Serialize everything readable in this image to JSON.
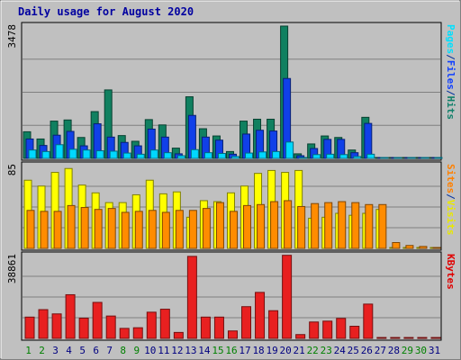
{
  "chart_data": {
    "type": "bar",
    "title": "Daily usage for August 2020",
    "days": [
      "1",
      "2",
      "3",
      "4",
      "5",
      "6",
      "7",
      "8",
      "9",
      "10",
      "11",
      "12",
      "13",
      "14",
      "15",
      "16",
      "17",
      "18",
      "19",
      "20",
      "21",
      "22",
      "23",
      "24",
      "25",
      "26",
      "27",
      "28",
      "29",
      "30",
      "31"
    ],
    "weekend_days": [
      1,
      2,
      8,
      9,
      15,
      16,
      22,
      23,
      29,
      30
    ],
    "panels": [
      {
        "id": "hits-files-pages",
        "max_label": "3478",
        "ymax": 3478,
        "side_label": [
          "Pages",
          "/",
          "Files",
          "/",
          "Hits"
        ],
        "side_label_colors": [
          "#00e0ff",
          "#0030a0",
          "#1040ff",
          "#0030a0",
          "#10806a"
        ],
        "series": [
          {
            "name": "Hits",
            "color": "#108060",
            "values": [
              700,
              510,
              980,
              1010,
              550,
              1230,
              1800,
              600,
              450,
              1020,
              880,
              270,
              1620,
              780,
              590,
              180,
              980,
              1030,
              1030,
              3478,
              120,
              380,
              590,
              550,
              220,
              1080,
              0,
              0,
              0,
              0,
              0
            ]
          },
          {
            "name": "Files",
            "color": "#1040e8",
            "values": [
              510,
              340,
              610,
              710,
              330,
              910,
              560,
              420,
              330,
              770,
              560,
              120,
              1130,
              560,
              480,
              110,
              640,
              740,
              720,
              2100,
              70,
              260,
              500,
              500,
              150,
              920,
              0,
              0,
              0,
              0,
              0
            ]
          },
          {
            "name": "Pages",
            "color": "#00d8ff",
            "values": [
              220,
              180,
              360,
              240,
              220,
              200,
              190,
              140,
              110,
              220,
              150,
              70,
              230,
              150,
              130,
              50,
              140,
              170,
              180,
              430,
              20,
              100,
              110,
              100,
              50,
              110,
              0,
              0,
              0,
              0,
              0
            ]
          }
        ]
      },
      {
        "id": "visits-sites",
        "max_label": "85",
        "ymax": 85,
        "side_label": [
          "Sites",
          "/",
          "Visits"
        ],
        "side_label_colors": [
          "#ff8000",
          "#0030a0",
          "#e8e800"
        ],
        "series": [
          {
            "name": "Visits",
            "color": "#ffff00",
            "values": [
              70,
              64,
              78,
              82,
              65,
              57,
              47,
              47,
              55,
              70,
              56,
              58,
              32,
              49,
              48,
              57,
              64,
              77,
              80,
              78,
              80,
              31,
              32,
              36,
              34,
              36,
              40,
              0,
              0,
              0,
              0
            ]
          },
          {
            "name": "Sites",
            "color": "#ff8c00",
            "values": [
              39,
              38,
              38,
              44,
              42,
              40,
              41,
              37,
              38,
              39,
              37,
              39,
              39,
              41,
              47,
              38,
              44,
              45,
              48,
              49,
              43,
              46,
              47,
              48,
              47,
              45,
              45,
              6,
              3,
              2,
              0
            ]
          }
        ]
      },
      {
        "id": "kbytes",
        "max_label": "38861",
        "ymax": 38861,
        "side_label": [
          "KBytes"
        ],
        "side_label_colors": [
          "#e00000"
        ],
        "series": [
          {
            "name": "KBytes",
            "color": "#e82020",
            "values": [
              10000,
              13500,
              11500,
              20500,
              9500,
              16900,
              10500,
              4700,
              5000,
              12300,
              13700,
              2800,
              38500,
              10000,
              10000,
              3500,
              14900,
              21600,
              13000,
              39000,
              1800,
              7700,
              8100,
              9400,
              5700,
              16100,
              0,
              0,
              0,
              0,
              0
            ]
          }
        ]
      }
    ]
  }
}
